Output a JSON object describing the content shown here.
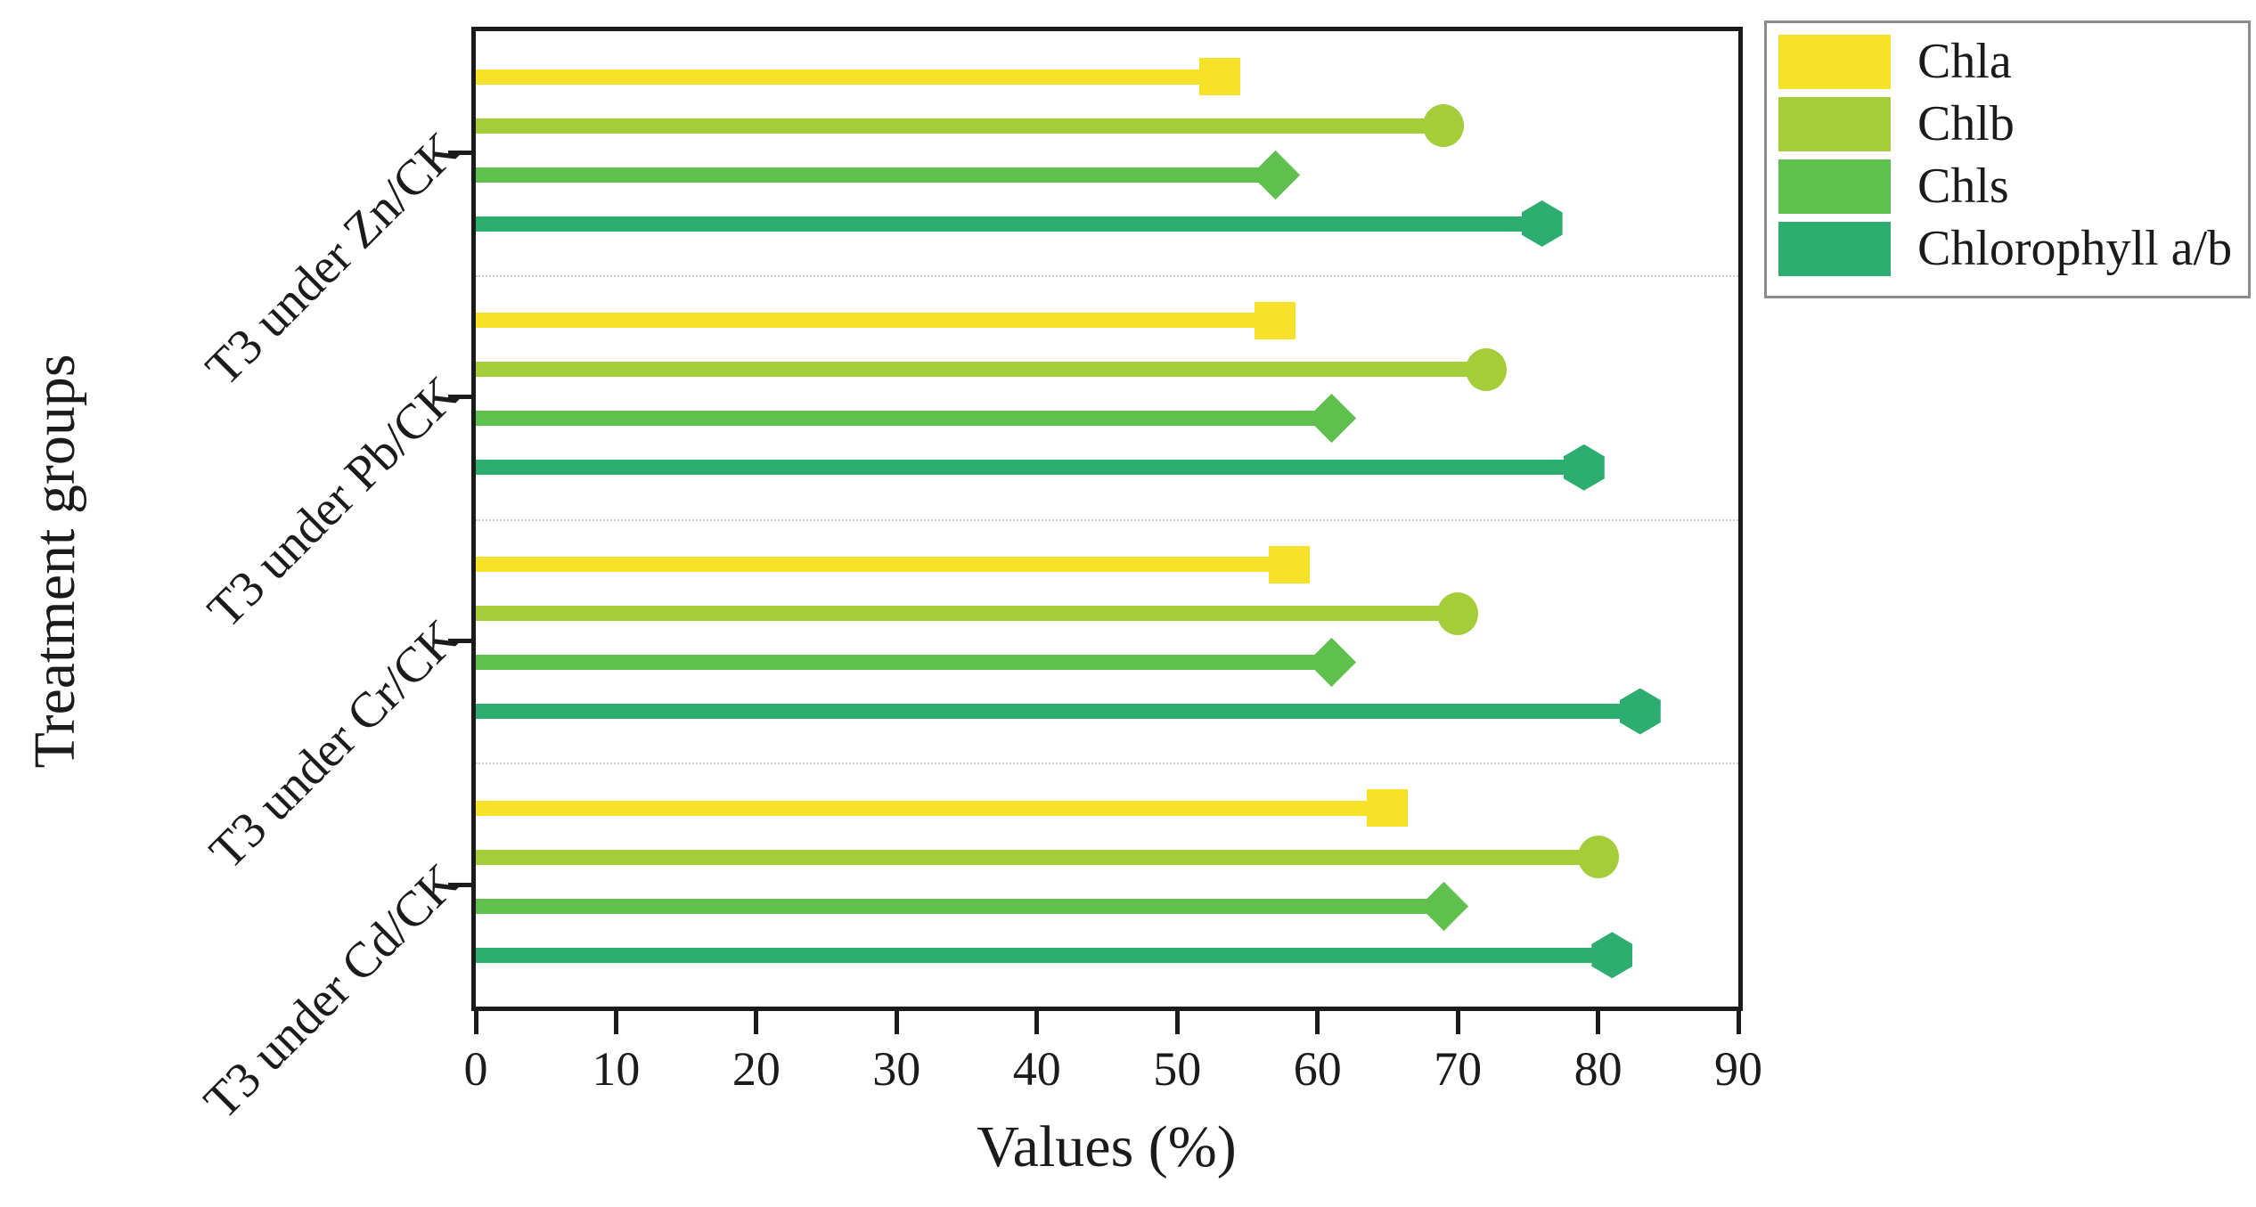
{
  "axes": {
    "x": {
      "title": "Values (%)",
      "tick_labels": [
        "0",
        "10",
        "20",
        "30",
        "40",
        "50",
        "60",
        "70",
        "80",
        "90"
      ],
      "min": 0,
      "max": 90
    },
    "y": {
      "title": "Treatment groups",
      "categories": [
        "T3 under Zn/CK",
        "T3 under Pb/CK",
        "T3 under Cr/CK",
        "T3 under Cd/CK"
      ]
    }
  },
  "legend": {
    "position": "top-right",
    "items": [
      "Chla",
      "Chlb",
      "Chls",
      "Chlorophyll a/b"
    ]
  },
  "colors": {
    "chla": "#F6E229",
    "chlb": "#A4CD39",
    "chls": "#5FC04D",
    "chlorophyll_ab": "#2EAD71",
    "axis": "#1b1b1b",
    "separator": "#cccccc",
    "legend_border": "#8c8c8c"
  },
  "chart_data": {
    "type": "bar",
    "subtype": "horizontal-lollipop",
    "categories": [
      "T3 under Zn/CK",
      "T3 under Pb/CK",
      "T3 under Cr/CK",
      "T3 under Cd/CK"
    ],
    "series": [
      {
        "name": "Chla",
        "marker": "square",
        "color": "#F6E229",
        "values": [
          53,
          57,
          58,
          65
        ]
      },
      {
        "name": "Chlb",
        "marker": "circle",
        "color": "#A4CD39",
        "values": [
          69,
          72,
          70,
          80
        ]
      },
      {
        "name": "Chls",
        "marker": "diamond",
        "color": "#5FC04D",
        "values": [
          57,
          61,
          61,
          69
        ]
      },
      {
        "name": "Chlorophyll a/b",
        "marker": "hexagon",
        "color": "#2EAD71",
        "values": [
          76,
          79,
          83,
          81
        ]
      }
    ],
    "title": "",
    "xlabel": "Values (%)",
    "ylabel": "Treatment groups",
    "xlim": [
      0,
      90
    ],
    "x_ticks": [
      0,
      10,
      20,
      30,
      40,
      50,
      60,
      70,
      80,
      90
    ],
    "grid": "dotted horizontal separators between category groups",
    "legend_position": "top-right outside plot"
  }
}
